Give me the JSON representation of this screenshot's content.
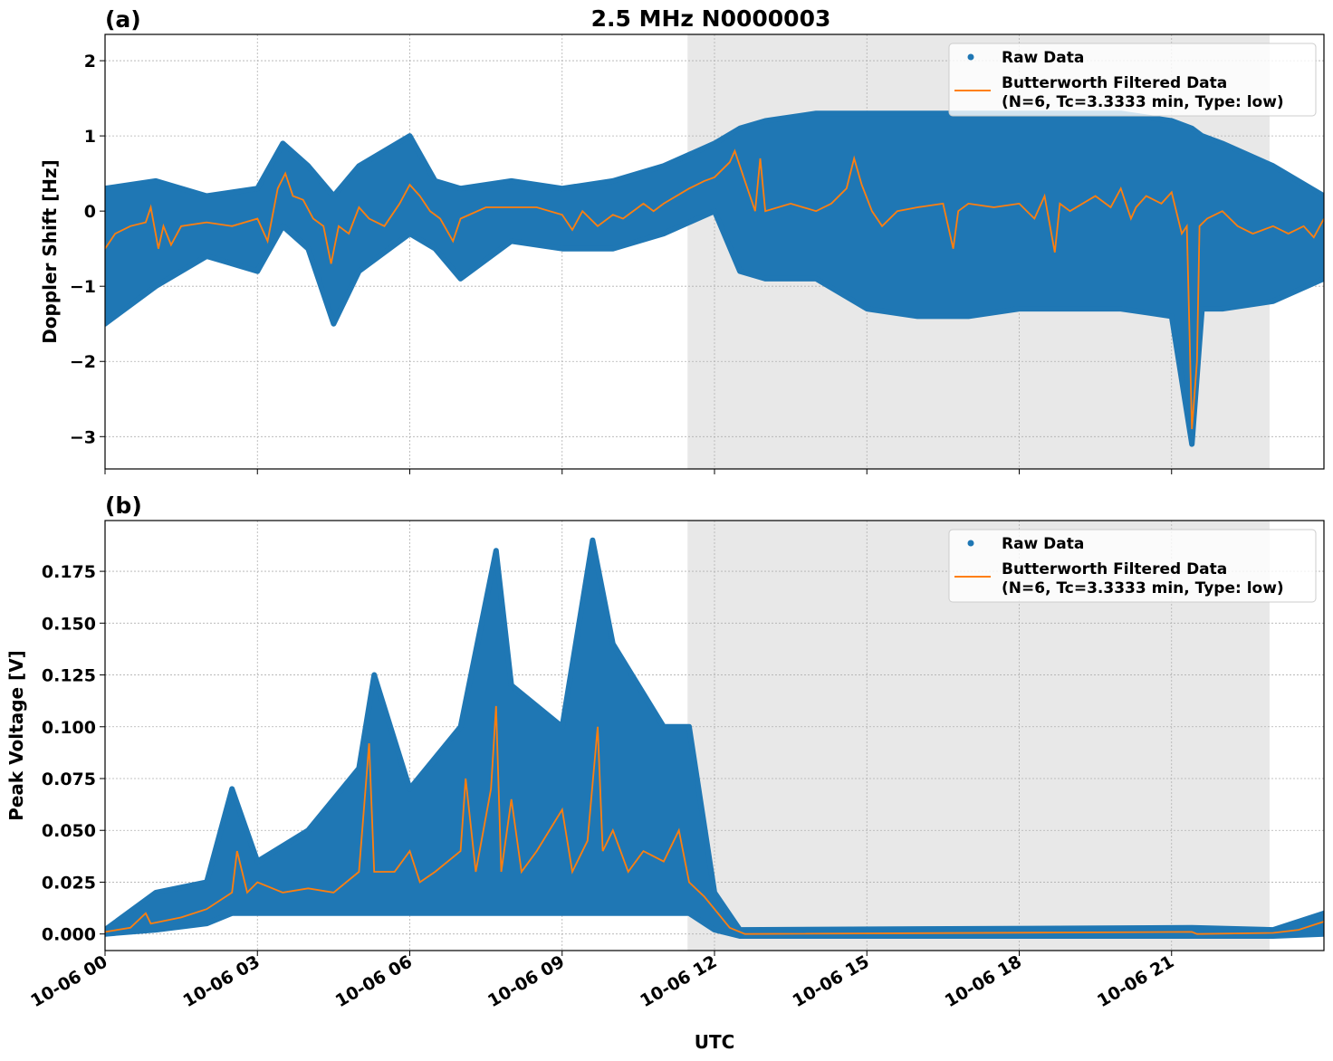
{
  "title": "2.5 MHz N0000003",
  "xlabel": "UTC",
  "x_tick_labels": [
    "10-06 00",
    "10-06 03",
    "10-06 06",
    "10-06 09",
    "10-06 12",
    "10-06 15",
    "10-06 18",
    "10-06 21"
  ],
  "colors": {
    "raw": "#1f77b4",
    "filtered": "#ff7f0e",
    "shade": "#e8e8e8"
  },
  "chart_data": [
    {
      "type": "scatter",
      "panel_label": "(a)",
      "ylabel": "Doppler Shift [Hz]",
      "xlim_hours": [
        0,
        24
      ],
      "ylim": [
        -3.43,
        2.35
      ],
      "yticks": [
        2,
        1,
        0,
        -1,
        -2,
        -3
      ],
      "ytick_labels": [
        "2",
        "1",
        "0",
        "−1",
        "−2",
        "−3"
      ],
      "grid": true,
      "shaded_interval_hours": [
        11.47,
        22.93
      ],
      "legend": {
        "placement": "upper-right",
        "raw": "Raw Data",
        "filtered_line1": "Butterworth Filtered Data",
        "filtered_line2": "(N=6, Tc=3.3333 min, Type: low)"
      },
      "raw_envelope": [
        [
          0,
          -1.5,
          0.3
        ],
        [
          1,
          -1.0,
          0.4
        ],
        [
          2,
          -0.6,
          0.2
        ],
        [
          3,
          -0.8,
          0.3
        ],
        [
          3.5,
          -0.2,
          0.9
        ],
        [
          4,
          -0.5,
          0.6
        ],
        [
          4.5,
          -1.5,
          0.2
        ],
        [
          5,
          -0.8,
          0.6
        ],
        [
          6,
          -0.3,
          1.0
        ],
        [
          6.5,
          -0.5,
          0.4
        ],
        [
          7,
          -0.9,
          0.3
        ],
        [
          8,
          -0.4,
          0.4
        ],
        [
          9,
          -0.5,
          0.3
        ],
        [
          10,
          -0.5,
          0.4
        ],
        [
          11,
          -0.3,
          0.6
        ],
        [
          12,
          0.0,
          0.9
        ],
        [
          12.5,
          -0.8,
          1.1
        ],
        [
          13,
          -0.9,
          1.2
        ],
        [
          14,
          -0.9,
          1.3
        ],
        [
          15,
          -1.3,
          1.3
        ],
        [
          16,
          -1.4,
          1.3
        ],
        [
          17,
          -1.4,
          1.3
        ],
        [
          18,
          -1.3,
          1.3
        ],
        [
          19,
          -1.3,
          1.3
        ],
        [
          20,
          -1.3,
          1.3
        ],
        [
          21,
          -1.4,
          1.2
        ],
        [
          21.4,
          -3.1,
          1.1
        ],
        [
          21.6,
          -1.3,
          1.0
        ],
        [
          22,
          -1.3,
          0.9
        ],
        [
          23,
          -1.2,
          0.6
        ],
        [
          24,
          -0.9,
          0.2
        ]
      ],
      "filtered": [
        [
          0,
          -0.5
        ],
        [
          0.2,
          -0.3
        ],
        [
          0.5,
          -0.2
        ],
        [
          0.8,
          -0.15
        ],
        [
          0.9,
          0.05
        ],
        [
          1.05,
          -0.5
        ],
        [
          1.15,
          -0.2
        ],
        [
          1.3,
          -0.45
        ],
        [
          1.5,
          -0.2
        ],
        [
          2,
          -0.15
        ],
        [
          2.5,
          -0.2
        ],
        [
          3,
          -0.1
        ],
        [
          3.2,
          -0.4
        ],
        [
          3.4,
          0.3
        ],
        [
          3.55,
          0.5
        ],
        [
          3.7,
          0.2
        ],
        [
          3.9,
          0.15
        ],
        [
          4.1,
          -0.1
        ],
        [
          4.3,
          -0.2
        ],
        [
          4.45,
          -0.7
        ],
        [
          4.6,
          -0.2
        ],
        [
          4.8,
          -0.3
        ],
        [
          5,
          0.05
        ],
        [
          5.2,
          -0.1
        ],
        [
          5.5,
          -0.2
        ],
        [
          5.8,
          0.1
        ],
        [
          6,
          0.35
        ],
        [
          6.2,
          0.2
        ],
        [
          6.4,
          0.0
        ],
        [
          6.6,
          -0.1
        ],
        [
          6.85,
          -0.4
        ],
        [
          7,
          -0.1
        ],
        [
          7.5,
          0.05
        ],
        [
          8,
          0.05
        ],
        [
          8.5,
          0.05
        ],
        [
          9,
          -0.05
        ],
        [
          9.2,
          -0.25
        ],
        [
          9.4,
          0.0
        ],
        [
          9.7,
          -0.2
        ],
        [
          10,
          -0.05
        ],
        [
          10.2,
          -0.1
        ],
        [
          10.6,
          0.1
        ],
        [
          10.8,
          0.0
        ],
        [
          11,
          0.1
        ],
        [
          11.5,
          0.3
        ],
        [
          11.8,
          0.4
        ],
        [
          12,
          0.45
        ],
        [
          12.3,
          0.65
        ],
        [
          12.4,
          0.8
        ],
        [
          12.6,
          0.4
        ],
        [
          12.8,
          0.0
        ],
        [
          12.9,
          0.7
        ],
        [
          13,
          0.0
        ],
        [
          13.5,
          0.1
        ],
        [
          14,
          0.0
        ],
        [
          14.3,
          0.1
        ],
        [
          14.6,
          0.3
        ],
        [
          14.75,
          0.7
        ],
        [
          14.9,
          0.35
        ],
        [
          15.1,
          0.0
        ],
        [
          15.3,
          -0.2
        ],
        [
          15.6,
          0.0
        ],
        [
          16,
          0.05
        ],
        [
          16.5,
          0.1
        ],
        [
          16.7,
          -0.5
        ],
        [
          16.8,
          0.0
        ],
        [
          17,
          0.1
        ],
        [
          17.5,
          0.05
        ],
        [
          18,
          0.1
        ],
        [
          18.3,
          -0.1
        ],
        [
          18.5,
          0.2
        ],
        [
          18.7,
          -0.55
        ],
        [
          18.8,
          0.1
        ],
        [
          19,
          0.0
        ],
        [
          19.5,
          0.2
        ],
        [
          19.8,
          0.05
        ],
        [
          20,
          0.3
        ],
        [
          20.2,
          -0.1
        ],
        [
          20.3,
          0.05
        ],
        [
          20.5,
          0.2
        ],
        [
          20.8,
          0.1
        ],
        [
          21,
          0.25
        ],
        [
          21.2,
          -0.3
        ],
        [
          21.3,
          -0.2
        ],
        [
          21.4,
          -2.9
        ],
        [
          21.5,
          -2.0
        ],
        [
          21.55,
          -0.2
        ],
        [
          21.7,
          -0.1
        ],
        [
          22,
          0.0
        ],
        [
          22.3,
          -0.2
        ],
        [
          22.6,
          -0.3
        ],
        [
          23,
          -0.2
        ],
        [
          23.3,
          -0.3
        ],
        [
          23.6,
          -0.2
        ],
        [
          23.8,
          -0.35
        ],
        [
          24,
          -0.1
        ]
      ]
    },
    {
      "type": "scatter",
      "panel_label": "(b)",
      "ylabel": "Peak Voltage [V]",
      "xlim_hours": [
        0,
        24
      ],
      "ylim": [
        -0.008,
        0.1995
      ],
      "yticks": [
        0.175,
        0.15,
        0.125,
        0.1,
        0.075,
        0.05,
        0.025,
        0.0
      ],
      "ytick_labels": [
        "0.175",
        "0.150",
        "0.125",
        "0.100",
        "0.075",
        "0.050",
        "0.025",
        "0.000"
      ],
      "grid": true,
      "shaded_interval_hours": [
        11.47,
        22.93
      ],
      "legend": {
        "placement": "upper-right",
        "raw": "Raw Data",
        "filtered_line1": "Butterworth Filtered Data",
        "filtered_line2": "(N=6, Tc=3.3333 min, Type: low)"
      },
      "raw_envelope": [
        [
          0,
          0,
          0.002
        ],
        [
          1,
          0.002,
          0.02
        ],
        [
          2,
          0.005,
          0.025
        ],
        [
          2.5,
          0.01,
          0.07
        ],
        [
          3,
          0.01,
          0.035
        ],
        [
          4,
          0.01,
          0.05
        ],
        [
          5,
          0.01,
          0.08
        ],
        [
          5.3,
          0.01,
          0.125
        ],
        [
          6,
          0.01,
          0.07
        ],
        [
          7,
          0.01,
          0.1
        ],
        [
          7.7,
          0.01,
          0.185
        ],
        [
          8,
          0.01,
          0.12
        ],
        [
          9,
          0.01,
          0.1
        ],
        [
          9.6,
          0.01,
          0.19
        ],
        [
          10,
          0.01,
          0.14
        ],
        [
          11,
          0.01,
          0.1
        ],
        [
          11.5,
          0.01,
          0.1
        ],
        [
          12,
          0.002,
          0.02
        ],
        [
          12.5,
          -0.001,
          0.002
        ],
        [
          21.4,
          -0.001,
          0.003
        ],
        [
          23,
          -0.001,
          0.002
        ],
        [
          24,
          0.0,
          0.01
        ]
      ],
      "filtered": [
        [
          0,
          0.001
        ],
        [
          0.5,
          0.003
        ],
        [
          0.8,
          0.01
        ],
        [
          0.9,
          0.005
        ],
        [
          1.5,
          0.008
        ],
        [
          2,
          0.012
        ],
        [
          2.5,
          0.02
        ],
        [
          2.6,
          0.04
        ],
        [
          2.8,
          0.02
        ],
        [
          3,
          0.025
        ],
        [
          3.5,
          0.02
        ],
        [
          4,
          0.022
        ],
        [
          4.5,
          0.02
        ],
        [
          5,
          0.03
        ],
        [
          5.2,
          0.092
        ],
        [
          5.3,
          0.03
        ],
        [
          5.7,
          0.03
        ],
        [
          6,
          0.04
        ],
        [
          6.2,
          0.025
        ],
        [
          6.5,
          0.03
        ],
        [
          7,
          0.04
        ],
        [
          7.1,
          0.075
        ],
        [
          7.3,
          0.03
        ],
        [
          7.6,
          0.07
        ],
        [
          7.7,
          0.11
        ],
        [
          7.8,
          0.03
        ],
        [
          8,
          0.065
        ],
        [
          8.2,
          0.03
        ],
        [
          8.5,
          0.04
        ],
        [
          9,
          0.06
        ],
        [
          9.2,
          0.03
        ],
        [
          9.5,
          0.045
        ],
        [
          9.7,
          0.1
        ],
        [
          9.8,
          0.04
        ],
        [
          10,
          0.05
        ],
        [
          10.3,
          0.03
        ],
        [
          10.6,
          0.04
        ],
        [
          11,
          0.035
        ],
        [
          11.3,
          0.05
        ],
        [
          11.5,
          0.025
        ],
        [
          11.8,
          0.018
        ],
        [
          12,
          0.012
        ],
        [
          12.3,
          0.003
        ],
        [
          12.6,
          0.0
        ],
        [
          21.4,
          0.001
        ],
        [
          21.5,
          0.0
        ],
        [
          23,
          0.0005
        ],
        [
          23.5,
          0.002
        ],
        [
          24,
          0.006
        ]
      ]
    }
  ]
}
